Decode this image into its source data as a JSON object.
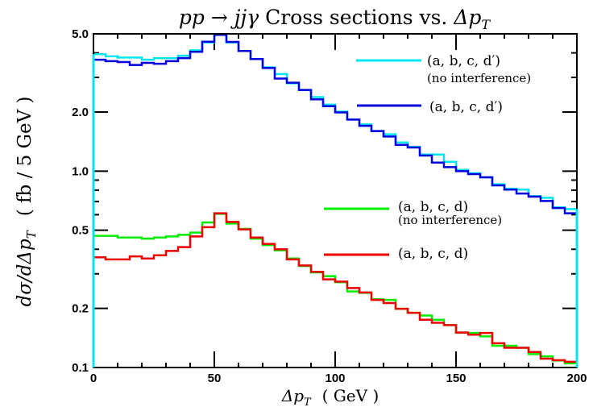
{
  "chart_data": {
    "type": "line",
    "style": "step-histogram",
    "title": "pp → jjγ Cross sections vs. Δp_T",
    "title_parts": {
      "process": "pp → jjγ",
      "rest": " Cross sections vs. ",
      "var": "Δp",
      "sub": "T"
    },
    "xlabel": "Δp_T ( GeV )",
    "xlabel_parts": {
      "var": "Δp",
      "sub": "T",
      "unit": "( GeV )"
    },
    "ylabel": "dσ/dΔp_T ( fb / 5 GeV )",
    "ylabel_parts": {
      "var": "dσ/dΔp",
      "sub": "T",
      "unit": "( fb / 5 GeV )"
    },
    "xlim": [
      0,
      200
    ],
    "ylim": [
      0.1,
      5.0
    ],
    "yscale": "log",
    "bin_width": 5,
    "xticks": [
      "0",
      "50",
      "100",
      "150",
      "200"
    ],
    "yticks": [
      "0.1",
      "0.2",
      "0.5",
      "1.0",
      "2.0",
      "5.0"
    ],
    "grid": false,
    "legend_placement": "right",
    "series": [
      {
        "name": "(a, b, c, d′)",
        "note": "(no interference)",
        "color": "#00e5ee",
        "values": [
          3.94,
          3.84,
          3.79,
          3.79,
          3.69,
          3.76,
          3.76,
          3.87,
          4.12,
          4.52,
          4.94,
          4.52,
          4.09,
          3.72,
          3.38,
          3.12,
          2.8,
          2.59,
          2.38,
          2.18,
          2.01,
          1.83,
          1.73,
          1.6,
          1.54,
          1.4,
          1.33,
          1.215,
          1.215,
          1.116,
          1.015,
          0.975,
          0.93,
          0.857,
          0.814,
          0.805,
          0.746,
          0.732,
          0.653,
          0.641
        ]
      },
      {
        "name": "(a, b, c, d′)",
        "note": "",
        "color": "#0000dd",
        "values": [
          3.69,
          3.63,
          3.59,
          3.47,
          3.56,
          3.52,
          3.63,
          3.76,
          4.05,
          4.56,
          4.94,
          4.55,
          4.09,
          3.72,
          3.35,
          2.96,
          2.82,
          2.59,
          2.32,
          2.14,
          1.99,
          1.83,
          1.7,
          1.6,
          1.5,
          1.36,
          1.32,
          1.2,
          1.105,
          1.048,
          1.0,
          0.966,
          0.93,
          0.846,
          0.805,
          0.769,
          0.741,
          0.705,
          0.649,
          0.61
        ]
      },
      {
        "name": "(a, b, c, d)",
        "note": "(no interference)",
        "color": "#00ee00",
        "values": [
          0.468,
          0.468,
          0.459,
          0.459,
          0.453,
          0.459,
          0.465,
          0.474,
          0.486,
          0.548,
          0.606,
          0.541,
          0.508,
          0.453,
          0.42,
          0.395,
          0.359,
          0.329,
          0.305,
          0.292,
          0.272,
          0.244,
          0.24,
          0.2226,
          0.221,
          0.199,
          0.19,
          0.184,
          0.175,
          0.1645,
          0.1506,
          0.15,
          0.144,
          0.129,
          0.129,
          0.126,
          0.117,
          0.114,
          0.1085,
          0.105
        ]
      },
      {
        "name": "(a, b, c, d)",
        "note": "",
        "color": "#ee0000",
        "values": [
          0.364,
          0.355,
          0.355,
          0.368,
          0.359,
          0.373,
          0.392,
          0.41,
          0.465,
          0.518,
          0.61,
          0.551,
          0.505,
          0.459,
          0.426,
          0.4,
          0.355,
          0.331,
          0.307,
          0.281,
          0.274,
          0.254,
          0.241,
          0.221,
          0.213,
          0.199,
          0.19,
          0.175,
          0.169,
          0.1645,
          0.1506,
          0.147,
          0.15,
          0.133,
          0.126,
          0.126,
          0.12,
          0.111,
          0.109,
          0.107
        ]
      }
    ]
  }
}
